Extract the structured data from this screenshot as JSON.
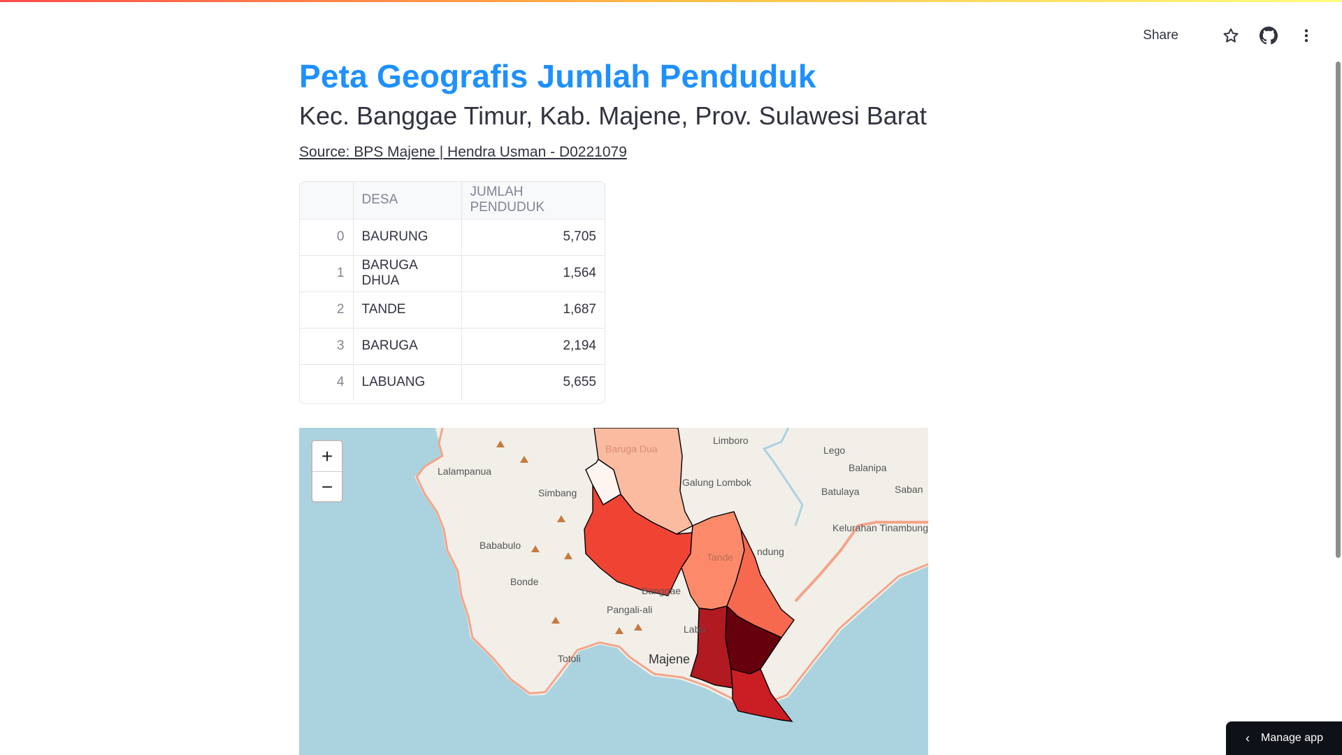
{
  "header": {
    "share_label": "Share"
  },
  "page": {
    "title": "Peta Geografis Jumlah Penduduk",
    "subtitle": "Kec. Banggae Timur, Kab. Majene, Prov. Sulawesi Barat",
    "source": "Source: BPS Majene | Hendra Usman - D0221079"
  },
  "table": {
    "columns": [
      "DESA",
      "JUMLAH PENDUDUK"
    ],
    "rows": [
      {
        "index": "0",
        "desa": "BAURUNG",
        "jumlah": "5,705"
      },
      {
        "index": "1",
        "desa": "BARUGA DHUA",
        "jumlah": "1,564"
      },
      {
        "index": "2",
        "desa": "TANDE",
        "jumlah": "1,687"
      },
      {
        "index": "3",
        "desa": "BARUGA",
        "jumlah": "2,194"
      },
      {
        "index": "4",
        "desa": "LABUANG",
        "jumlah": "5,655"
      }
    ]
  },
  "map": {
    "zoom_in": "+",
    "zoom_out": "−",
    "place_labels": [
      "Limboro",
      "Lego",
      "Balanipa",
      "Lalampanua",
      "Galung Lombok",
      "Batulaya",
      "Saban",
      "Simbang",
      "Kelurahan Tinambung",
      "Bababulo",
      "Bonde",
      "Banggae",
      "Pangali-ali",
      "Totoli",
      "Majene",
      "Labu",
      "Baruga Dua",
      "Tande",
      "ndung"
    ],
    "colors": {
      "sea": "#aad3df",
      "land": "#f2efe9",
      "road": "#f3a58a"
    }
  },
  "footer": {
    "manage_label": "Manage app"
  }
}
